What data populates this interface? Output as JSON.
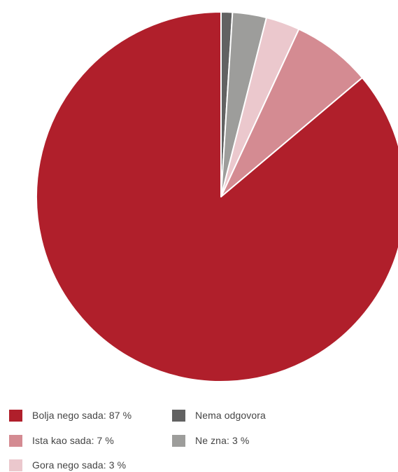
{
  "chart_data": {
    "type": "pie",
    "title": "",
    "slices": [
      {
        "label": "Nema odgovora",
        "value": 1,
        "color": "#626262"
      },
      {
        "label": "Ne zna: 3%",
        "value": 3,
        "color": "#9d9d9b"
      },
      {
        "label": "Gora nego sada: 3%",
        "value": 3,
        "color": "#ebc8cd"
      },
      {
        "label": "Ista kao sada: 7%",
        "value": 7,
        "color": "#d48b92"
      },
      {
        "label": "Bolja nego sada: 87%",
        "value": 87,
        "color": "#b01f2b"
      }
    ],
    "start_angle": "12 o'clock",
    "direction": "clockwise",
    "legend_position": "bottom"
  },
  "legend": {
    "items": [
      {
        "label": "Bolja nego sada: 87 %",
        "color": "#b01f2b"
      },
      {
        "label": "Nema odgovora",
        "color": "#626262"
      },
      {
        "label": "Ista kao sada: 7 %",
        "color": "#d48b92"
      },
      {
        "label": "Ne zna: 3 %",
        "color": "#9d9d9b"
      },
      {
        "label": "Gora nego sada: 3 %",
        "color": "#ebc8cd"
      }
    ]
  }
}
